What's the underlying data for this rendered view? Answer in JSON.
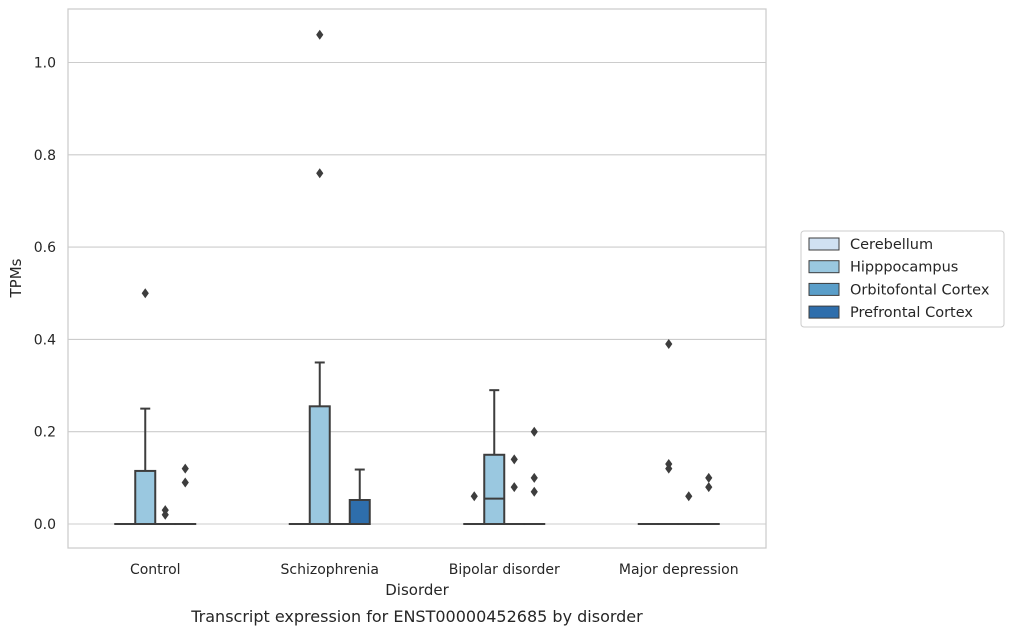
{
  "chart_data": {
    "type": "box",
    "caption": "Transcript expression for ENST00000452685 by disorder",
    "xlabel": "Disorder",
    "ylabel": "TPMs",
    "ylim": [
      -0.05,
      1.12
    ],
    "yticks": [
      0.0,
      0.2,
      0.4,
      0.6,
      0.8,
      1.0
    ],
    "ytick_labels": [
      "0.0",
      "0.2",
      "0.4",
      "0.6",
      "0.8",
      "1.0"
    ],
    "grid": "horizontal",
    "legend_position": "right",
    "categories": [
      "Control",
      "Schizophrenia",
      "Bipolar disorder",
      "Major depression"
    ],
    "series": [
      {
        "name": "Cerebellum",
        "color": "#d0e1f2",
        "boxes": [
          {
            "q1": 0,
            "median": 0,
            "q3": 0,
            "whisker_low": 0,
            "whisker_high": 0,
            "outliers": []
          },
          {
            "q1": 0,
            "median": 0,
            "q3": 0,
            "whisker_low": 0,
            "whisker_high": 0,
            "outliers": []
          },
          {
            "q1": 0,
            "median": 0,
            "q3": 0,
            "whisker_low": 0,
            "whisker_high": 0,
            "outliers": [
              0.06
            ]
          },
          {
            "q1": 0,
            "median": 0,
            "q3": 0,
            "whisker_low": 0,
            "whisker_high": 0,
            "outliers": []
          }
        ]
      },
      {
        "name": "Hipppocampus",
        "color": "#9ac8e0",
        "boxes": [
          {
            "q1": 0,
            "median": 0,
            "q3": 0.115,
            "whisker_low": 0,
            "whisker_high": 0.25,
            "outliers": [
              0.5
            ]
          },
          {
            "q1": 0,
            "median": 0,
            "q3": 0.255,
            "whisker_low": 0,
            "whisker_high": 0.35,
            "outliers": [
              0.76,
              1.06
            ]
          },
          {
            "q1": 0,
            "median": 0.055,
            "q3": 0.15,
            "whisker_low": 0,
            "whisker_high": 0.29,
            "outliers": []
          },
          {
            "q1": 0,
            "median": 0,
            "q3": 0,
            "whisker_low": 0,
            "whisker_high": 0,
            "outliers": [
              0.39,
              0.13,
              0.12
            ]
          }
        ]
      },
      {
        "name": "Orbitofontal Cortex",
        "color": "#5a9ec9",
        "boxes": [
          {
            "q1": 0,
            "median": 0,
            "q3": 0,
            "whisker_low": 0,
            "whisker_high": 0,
            "outliers": [
              0.03,
              0.02
            ]
          },
          {
            "q1": 0,
            "median": 0,
            "q3": 0,
            "whisker_low": 0,
            "whisker_high": 0,
            "outliers": []
          },
          {
            "q1": 0,
            "median": 0,
            "q3": 0,
            "whisker_low": 0,
            "whisker_high": 0,
            "outliers": [
              0.14,
              0.08
            ]
          },
          {
            "q1": 0,
            "median": 0,
            "q3": 0,
            "whisker_low": 0,
            "whisker_high": 0,
            "outliers": [
              0.06
            ]
          }
        ]
      },
      {
        "name": "Prefrontal Cortex",
        "color": "#2e6eac",
        "boxes": [
          {
            "q1": 0,
            "median": 0,
            "q3": 0,
            "whisker_low": 0,
            "whisker_high": 0,
            "outliers": [
              0.12,
              0.09
            ]
          },
          {
            "q1": 0,
            "median": 0,
            "q3": 0.052,
            "whisker_low": 0,
            "whisker_high": 0.118,
            "outliers": []
          },
          {
            "q1": 0,
            "median": 0,
            "q3": 0,
            "whisker_low": 0,
            "whisker_high": 0,
            "outliers": [
              0.2,
              0.1,
              0.07
            ]
          },
          {
            "q1": 0,
            "median": 0,
            "q3": 0,
            "whisker_low": 0,
            "whisker_high": 0,
            "outliers": [
              0.1,
              0.08
            ]
          }
        ]
      }
    ]
  }
}
